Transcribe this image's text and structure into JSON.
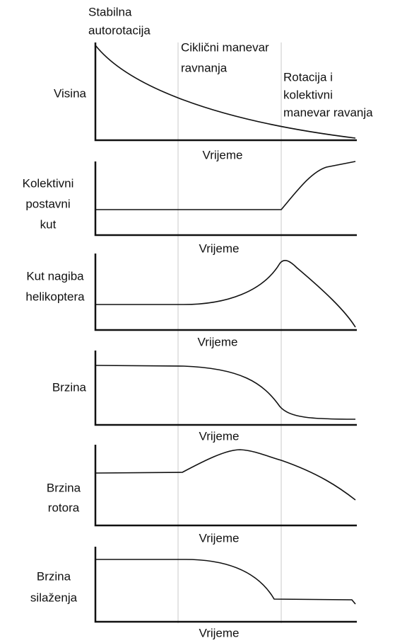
{
  "phases": [
    {
      "lines": [
        "Stabilna",
        "autorotacija"
      ]
    },
    {
      "lines": [
        "Ciklični manevar",
        "ravnanja"
      ]
    },
    {
      "lines": [
        "Rotacija i",
        "kolektivni",
        "manevar ravanja"
      ]
    }
  ],
  "panels": [
    {
      "label": [
        "Visina"
      ],
      "x_label": "Vrijeme"
    },
    {
      "label": [
        "Kolektivni",
        "postavni",
        "kut"
      ],
      "x_label": "Vrijeme"
    },
    {
      "label": [
        "Kut nagiba",
        "helikoptera"
      ],
      "x_label": "Vrijeme"
    },
    {
      "label": [
        "Brzina"
      ],
      "x_label": "Vrijeme"
    },
    {
      "label": [
        "Brzina",
        "rotora"
      ],
      "x_label": "Vrijeme"
    },
    {
      "label": [
        "Brzina",
        "silaženja"
      ],
      "x_label": "Vrijeme"
    }
  ]
}
